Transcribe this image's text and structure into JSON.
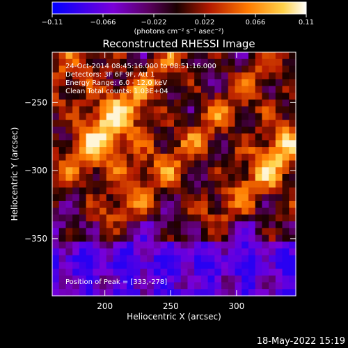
{
  "chart_data": {
    "type": "heatmap",
    "title": "Reconstructed RHESSI Image",
    "xlabel": "Heliocentric X (arcsec)",
    "ylabel": "Heliocentric Y (arcsec)",
    "xlim": [
      160,
      345
    ],
    "ylim": [
      -392,
      -213
    ],
    "x_ticks": [
      200,
      250,
      300
    ],
    "y_ticks": [
      -250,
      -300,
      -350
    ],
    "colorbar": {
      "min": -0.11,
      "max": 0.11,
      "ticks": [
        -0.11,
        -0.066,
        -0.022,
        0.022,
        0.066,
        0.11
      ],
      "tick_labels": [
        "−0.11",
        "−0.066",
        "−0.022",
        "0.022",
        "0.066",
        "0.11"
      ],
      "unit_label": "(photons cm⁻² s⁻¹ asec⁻²)",
      "colors": [
        "#0000ff",
        "#7a00d8",
        "#5a0060",
        "#1a0000",
        "#b41a00",
        "#ff7a00",
        "#ffd24a",
        "#ffffff"
      ]
    },
    "info_lines": [
      "24-Oct-2014 08:45:16.000 to 08:51:16.000",
      "Detectors: 3F 6F 9F, Att 1",
      "Energy Range: 6.0 - 12.0 keV",
      "Clean     Total counts: 1.03E+04"
    ],
    "peak_position": [
      333,
      -278
    ],
    "peak_label": "Position of Peak = [333,-278]",
    "footer": "18-May-2022 15:19"
  }
}
